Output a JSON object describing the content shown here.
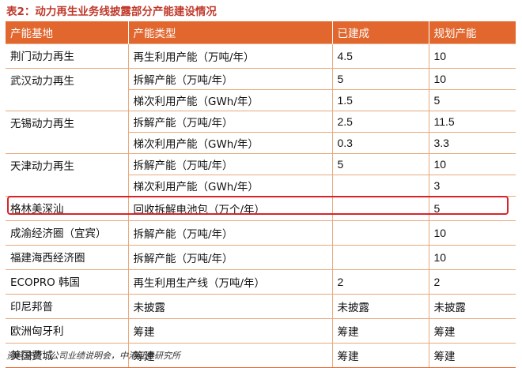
{
  "title": "表2：动力再生业务线披露部分产能建设情况",
  "columns": [
    "产能基地",
    "产能类型",
    "已建成",
    "规划产能"
  ],
  "groups": [
    {
      "base": "荆门动力再生",
      "rows": [
        {
          "type": "再生利用产能（万吨/年）",
          "built": "4.5",
          "planned": "10"
        }
      ]
    },
    {
      "base": "武汉动力再生",
      "rows": [
        {
          "type": "拆解产能（万吨/年）",
          "built": "5",
          "planned": "10"
        },
        {
          "type": "梯次利用产能（GWh/年）",
          "built": "1.5",
          "planned": "5"
        }
      ]
    },
    {
      "base": "无锡动力再生",
      "rows": [
        {
          "type": "拆解产能（万吨/年）",
          "built": "2.5",
          "planned": "11.5"
        },
        {
          "type": "梯次利用产能（GWh/年）",
          "built": "0.3",
          "planned": "3.3"
        }
      ]
    },
    {
      "base": "天津动力再生",
      "rows": [
        {
          "type": "拆解产能（万吨/年）",
          "built": "5",
          "planned": "10"
        },
        {
          "type": "梯次利用产能（GWh/年）",
          "built": "",
          "planned": "3"
        }
      ]
    },
    {
      "base": "格林美深汕",
      "rows": [
        {
          "type": "回收拆解电池包（万个/年）",
          "built": "",
          "planned": "5"
        }
      ]
    },
    {
      "base": "成渝经济圈（宜宾）",
      "rows": [
        {
          "type": "拆解产能（万吨/年）",
          "built": "",
          "planned": "10"
        }
      ]
    },
    {
      "base": "福建海西经济圈",
      "rows": [
        {
          "type": "拆解产能（万吨/年）",
          "built": "",
          "planned": "10"
        }
      ]
    },
    {
      "base": "ECOPRO 韩国",
      "rows": [
        {
          "type": "再生利用生产线（万吨/年）",
          "built": "2",
          "planned": "2"
        }
      ]
    },
    {
      "base": "印尼邦普",
      "rows": [
        {
          "type": "未披露",
          "built": "未披露",
          "planned": "未披露"
        }
      ]
    },
    {
      "base": "欧洲匈牙利",
      "rows": [
        {
          "type": "筹建",
          "built": "筹建",
          "planned": "筹建"
        }
      ]
    },
    {
      "base": "美国费城",
      "rows": [
        {
          "type": "筹建",
          "built": "筹建",
          "planned": "筹建"
        }
      ]
    }
  ],
  "source": "资料来源：公司业绩说明会，中港证券研究所",
  "colors": {
    "header_bg": "#e2672f",
    "title": "#c0392b",
    "highlight": "#d9232a"
  }
}
